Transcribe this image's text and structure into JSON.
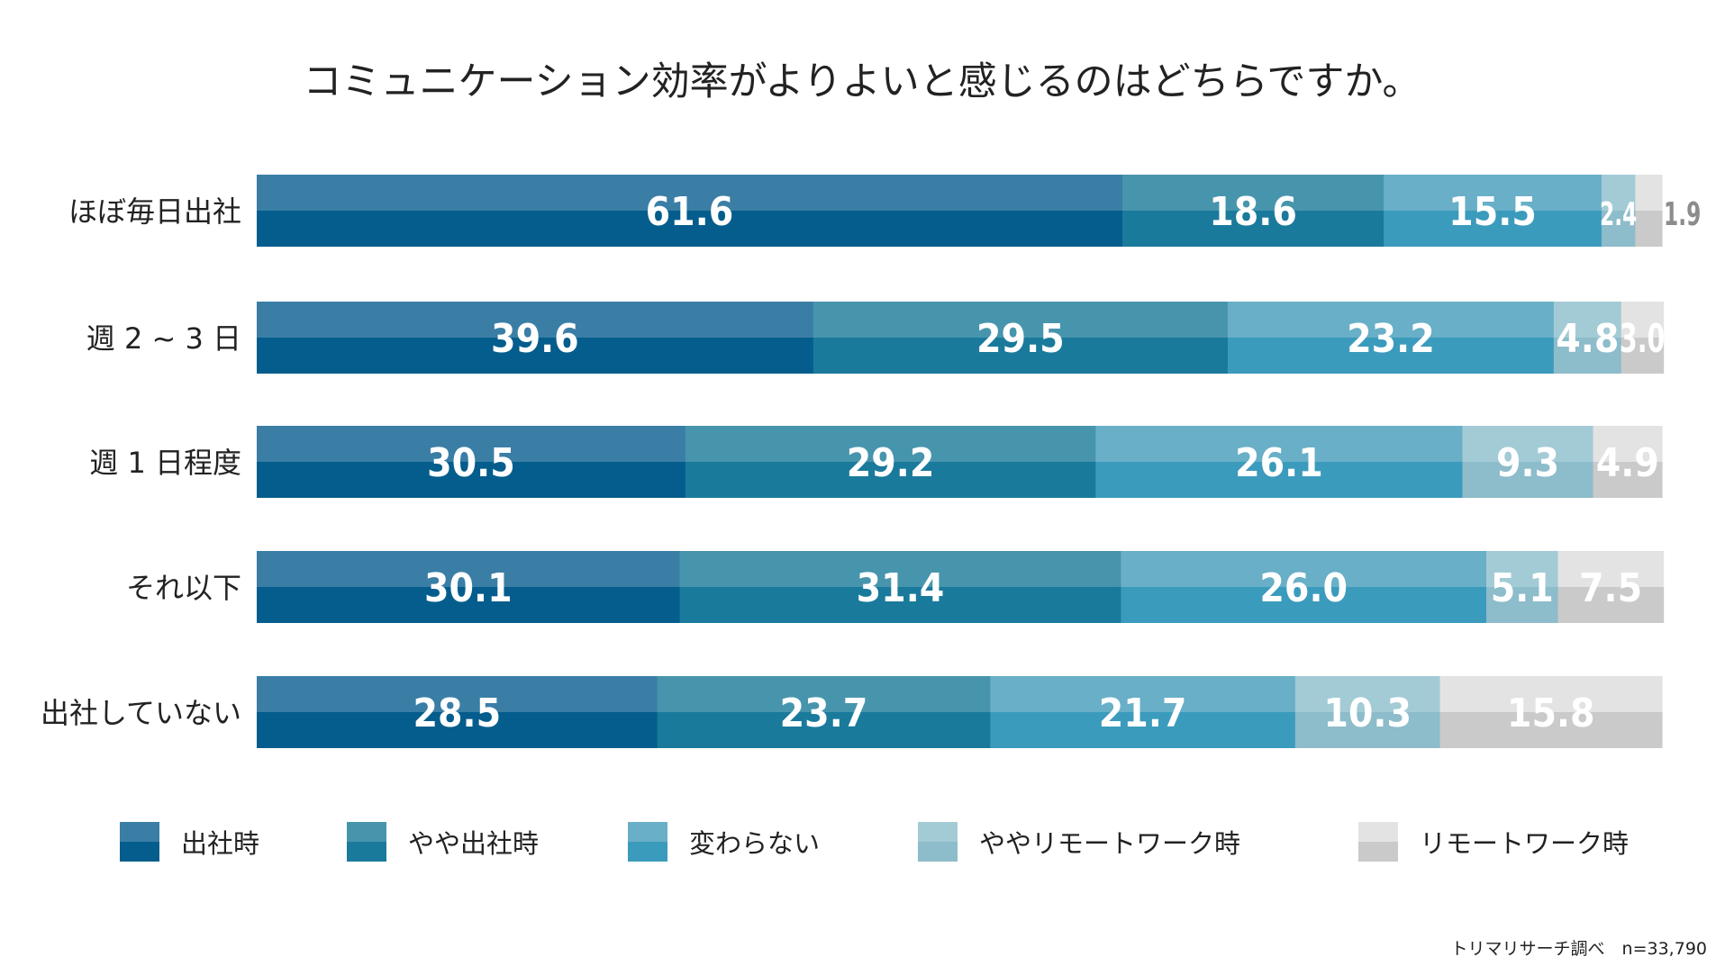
{
  "chart_data": {
    "type": "bar",
    "orientation": "horizontal-stacked-100",
    "title": "コミュニケーション効率がよりよいと感じるのはどちらですか。",
    "categories": [
      "ほぼ毎日出社",
      "週 2 ~ 3 日",
      "週 1 日程度",
      "それ以下",
      "出社していない"
    ],
    "series": [
      {
        "name": "出社時",
        "values": [
          61.6,
          39.6,
          30.5,
          30.1,
          28.5
        ],
        "color_top": "#3a7ea6",
        "color_bottom": "#045d8c"
      },
      {
        "name": "やや出社時",
        "values": [
          18.6,
          29.5,
          29.2,
          31.4,
          23.7
        ],
        "color_top": "#4795ad",
        "color_bottom": "#1a7a9c"
      },
      {
        "name": "変わらない",
        "values": [
          15.5,
          23.2,
          26.1,
          26.0,
          21.7
        ],
        "color_top": "#68afc7",
        "color_bottom": "#3b9bbc"
      },
      {
        "name": "ややリモートワーク時",
        "values": [
          2.4,
          4.8,
          9.3,
          5.1,
          10.3
        ],
        "color_top": "#a3cbd6",
        "color_bottom": "#8dbccb"
      },
      {
        "name": "リモートワーク時",
        "values": [
          1.9,
          3.0,
          4.9,
          7.5,
          15.8
        ],
        "color_top": "#e3e3e3",
        "color_bottom": "#cacaca"
      }
    ],
    "xlim": [
      0,
      100
    ],
    "legend_position": "bottom",
    "value_label_color": "#ffffff",
    "outside_label_color": "#8c8c8c",
    "source": "トリマリサーチ調べ　n=33,790"
  }
}
